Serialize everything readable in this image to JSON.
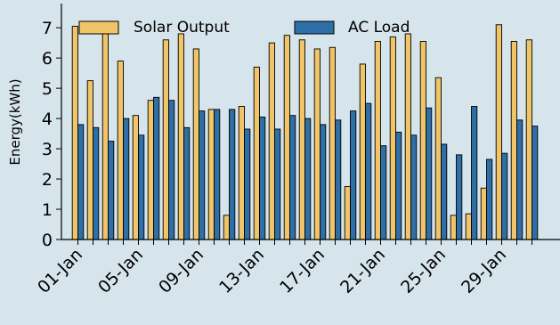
{
  "chart_data": {
    "type": "bar",
    "title": "",
    "xlabel": "",
    "ylabel": "Energy(kWh)",
    "ylim": [
      0,
      7.8
    ],
    "yticks": [
      0,
      1,
      2,
      3,
      4,
      5,
      6,
      7
    ],
    "x_tick_labels": [
      "01-Jan",
      "05-Jan",
      "09-Jan",
      "13-Jan",
      "17-Jan",
      "21-Jan",
      "25-Jan",
      "29-Jan"
    ],
    "x_tick_indices": [
      0,
      4,
      8,
      12,
      16,
      20,
      24,
      28
    ],
    "categories": [
      "01-Jan",
      "02-Jan",
      "03-Jan",
      "04-Jan",
      "05-Jan",
      "06-Jan",
      "07-Jan",
      "08-Jan",
      "09-Jan",
      "10-Jan",
      "11-Jan",
      "12-Jan",
      "13-Jan",
      "14-Jan",
      "15-Jan",
      "16-Jan",
      "17-Jan",
      "18-Jan",
      "19-Jan",
      "20-Jan",
      "21-Jan",
      "22-Jan",
      "23-Jan",
      "24-Jan",
      "25-Jan",
      "26-Jan",
      "27-Jan",
      "28-Jan",
      "29-Jan",
      "30-Jan",
      "31-Jan"
    ],
    "legend_position": "top",
    "grid": false,
    "series": [
      {
        "name": "Solar Output",
        "color": "#f0c468",
        "values": [
          7.05,
          5.25,
          6.85,
          5.9,
          4.1,
          4.6,
          6.6,
          6.8,
          6.3,
          4.3,
          0.8,
          4.4,
          5.7,
          6.5,
          6.75,
          6.6,
          6.3,
          6.35,
          1.75,
          5.8,
          6.55,
          6.7,
          6.8,
          6.55,
          5.35,
          0.8,
          0.85,
          1.7,
          7.1,
          6.55,
          6.6
        ]
      },
      {
        "name": "AC Load",
        "color": "#2f6fa8",
        "values": [
          3.8,
          3.7,
          3.25,
          4.0,
          3.45,
          4.7,
          4.6,
          3.7,
          4.25,
          4.3,
          4.3,
          3.65,
          4.05,
          3.65,
          4.1,
          4.0,
          3.8,
          3.95,
          4.25,
          4.5,
          3.1,
          3.55,
          3.45,
          4.35,
          3.15,
          2.8,
          4.4,
          2.65,
          2.85,
          3.95,
          3.75
        ]
      }
    ]
  }
}
